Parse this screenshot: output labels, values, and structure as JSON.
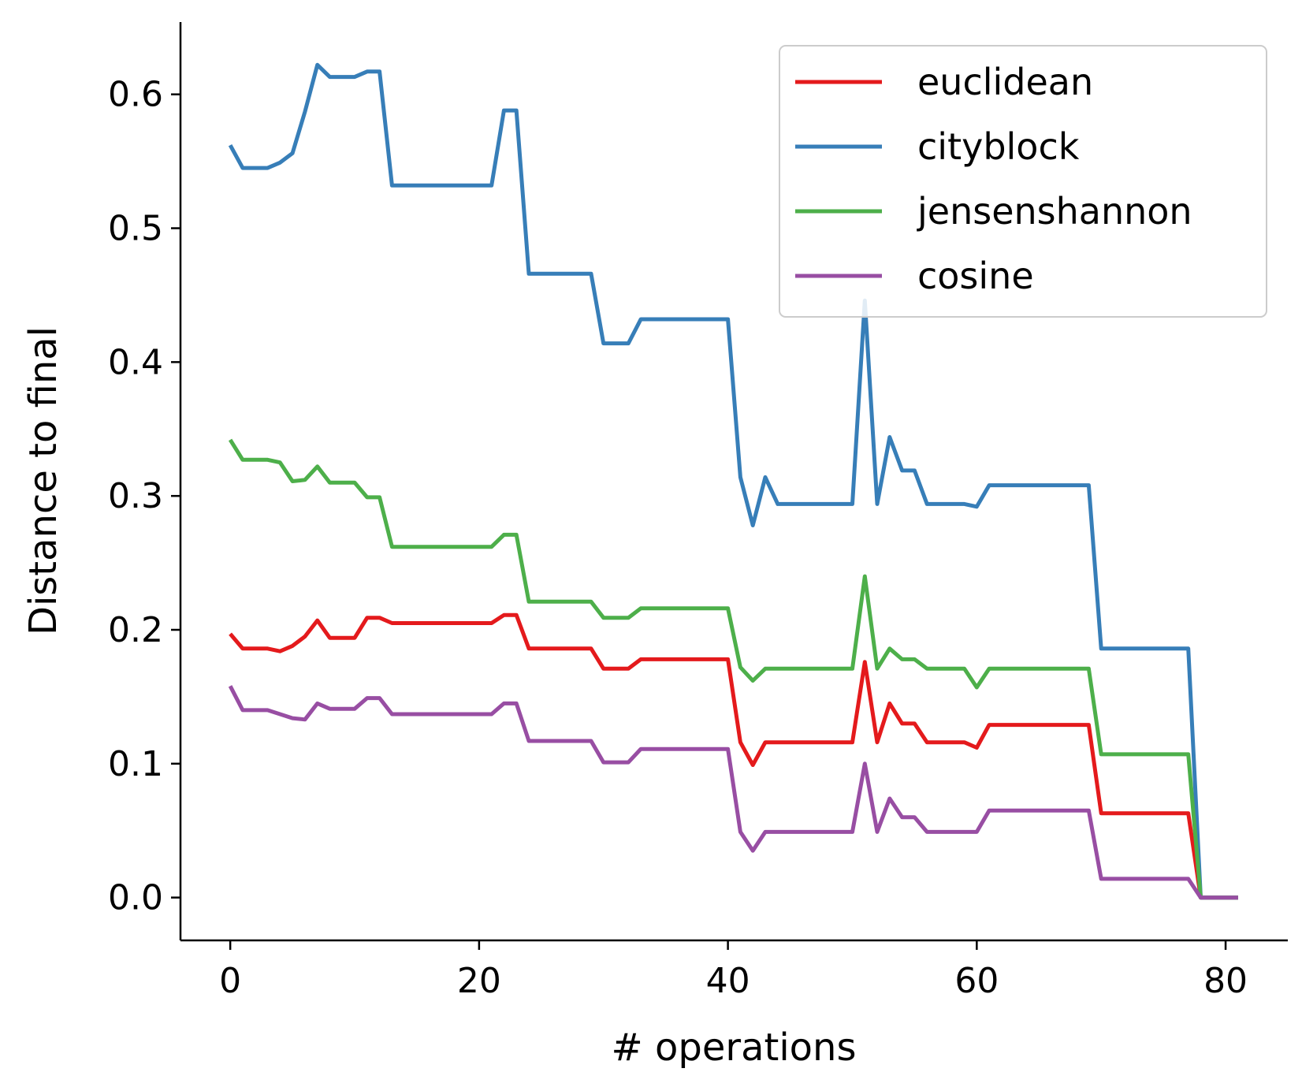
{
  "chart_data": {
    "type": "line",
    "title": "",
    "xlabel": "# operations",
    "ylabel": "Distance to final",
    "xlim": [
      -4,
      85
    ],
    "ylim": [
      -0.032,
      0.654
    ],
    "xticks": [
      0,
      20,
      40,
      60,
      80
    ],
    "yticks": [
      0.0,
      0.1,
      0.2,
      0.3,
      0.4,
      0.5,
      0.6
    ],
    "xtick_labels": [
      "0",
      "20",
      "40",
      "60",
      "80"
    ],
    "ytick_labels": [
      "0.0",
      "0.1",
      "0.2",
      "0.3",
      "0.4",
      "0.5",
      "0.6"
    ],
    "grid": false,
    "legend_position": "top-right",
    "x": [
      0,
      1,
      2,
      3,
      4,
      5,
      6,
      7,
      8,
      9,
      10,
      11,
      12,
      13,
      14,
      15,
      16,
      17,
      18,
      19,
      20,
      21,
      22,
      23,
      24,
      25,
      26,
      27,
      28,
      29,
      30,
      31,
      32,
      33,
      34,
      35,
      36,
      37,
      38,
      39,
      40,
      41,
      42,
      43,
      44,
      45,
      46,
      47,
      48,
      49,
      50,
      51,
      52,
      53,
      54,
      55,
      56,
      57,
      58,
      59,
      60,
      61,
      62,
      63,
      64,
      65,
      66,
      67,
      68,
      69,
      70,
      71,
      72,
      73,
      74,
      75,
      76,
      77,
      78,
      79,
      80,
      81
    ],
    "series": [
      {
        "name": "euclidean",
        "color": "#e41a1c",
        "values": [
          0.197,
          0.186,
          0.186,
          0.186,
          0.184,
          0.188,
          0.195,
          0.207,
          0.194,
          0.194,
          0.194,
          0.209,
          0.209,
          0.205,
          0.205,
          0.205,
          0.205,
          0.205,
          0.205,
          0.205,
          0.205,
          0.205,
          0.211,
          0.211,
          0.186,
          0.186,
          0.186,
          0.186,
          0.186,
          0.186,
          0.171,
          0.171,
          0.171,
          0.178,
          0.178,
          0.178,
          0.178,
          0.178,
          0.178,
          0.178,
          0.178,
          0.116,
          0.099,
          0.116,
          0.116,
          0.116,
          0.116,
          0.116,
          0.116,
          0.116,
          0.116,
          0.176,
          0.116,
          0.145,
          0.13,
          0.13,
          0.116,
          0.116,
          0.116,
          0.116,
          0.112,
          0.129,
          0.129,
          0.129,
          0.129,
          0.129,
          0.129,
          0.129,
          0.129,
          0.129,
          0.063,
          0.063,
          0.063,
          0.063,
          0.063,
          0.063,
          0.063,
          0.063,
          0.0,
          0.0,
          0.0,
          0.0
        ]
      },
      {
        "name": "cityblock",
        "color": "#377eb8",
        "values": [
          0.562,
          0.545,
          0.545,
          0.545,
          0.549,
          0.556,
          0.587,
          0.622,
          0.613,
          0.613,
          0.613,
          0.617,
          0.617,
          0.532,
          0.532,
          0.532,
          0.532,
          0.532,
          0.532,
          0.532,
          0.532,
          0.532,
          0.588,
          0.588,
          0.466,
          0.466,
          0.466,
          0.466,
          0.466,
          0.466,
          0.414,
          0.414,
          0.414,
          0.432,
          0.432,
          0.432,
          0.432,
          0.432,
          0.432,
          0.432,
          0.432,
          0.314,
          0.278,
          0.314,
          0.294,
          0.294,
          0.294,
          0.294,
          0.294,
          0.294,
          0.294,
          0.446,
          0.294,
          0.344,
          0.319,
          0.319,
          0.294,
          0.294,
          0.294,
          0.294,
          0.292,
          0.308,
          0.308,
          0.308,
          0.308,
          0.308,
          0.308,
          0.308,
          0.308,
          0.308,
          0.186,
          0.186,
          0.186,
          0.186,
          0.186,
          0.186,
          0.186,
          0.186,
          0.0,
          0.0,
          0.0,
          0.0
        ]
      },
      {
        "name": "jensenshannon",
        "color": "#4daf4a",
        "values": [
          0.342,
          0.327,
          0.327,
          0.327,
          0.325,
          0.311,
          0.312,
          0.322,
          0.31,
          0.31,
          0.31,
          0.299,
          0.299,
          0.262,
          0.262,
          0.262,
          0.262,
          0.262,
          0.262,
          0.262,
          0.262,
          0.262,
          0.271,
          0.271,
          0.221,
          0.221,
          0.221,
          0.221,
          0.221,
          0.221,
          0.209,
          0.209,
          0.209,
          0.216,
          0.216,
          0.216,
          0.216,
          0.216,
          0.216,
          0.216,
          0.216,
          0.172,
          0.162,
          0.171,
          0.171,
          0.171,
          0.171,
          0.171,
          0.171,
          0.171,
          0.171,
          0.24,
          0.171,
          0.186,
          0.178,
          0.178,
          0.171,
          0.171,
          0.171,
          0.171,
          0.157,
          0.171,
          0.171,
          0.171,
          0.171,
          0.171,
          0.171,
          0.171,
          0.171,
          0.171,
          0.107,
          0.107,
          0.107,
          0.107,
          0.107,
          0.107,
          0.107,
          0.107,
          0.0,
          0.0,
          0.0,
          0.0
        ]
      },
      {
        "name": "cosine",
        "color": "#984ea3",
        "values": [
          0.158,
          0.14,
          0.14,
          0.14,
          0.137,
          0.134,
          0.133,
          0.145,
          0.141,
          0.141,
          0.141,
          0.149,
          0.149,
          0.137,
          0.137,
          0.137,
          0.137,
          0.137,
          0.137,
          0.137,
          0.137,
          0.137,
          0.145,
          0.145,
          0.117,
          0.117,
          0.117,
          0.117,
          0.117,
          0.117,
          0.101,
          0.101,
          0.101,
          0.111,
          0.111,
          0.111,
          0.111,
          0.111,
          0.111,
          0.111,
          0.111,
          0.049,
          0.035,
          0.049,
          0.049,
          0.049,
          0.049,
          0.049,
          0.049,
          0.049,
          0.049,
          0.1,
          0.049,
          0.074,
          0.06,
          0.06,
          0.049,
          0.049,
          0.049,
          0.049,
          0.049,
          0.065,
          0.065,
          0.065,
          0.065,
          0.065,
          0.065,
          0.065,
          0.065,
          0.065,
          0.014,
          0.014,
          0.014,
          0.014,
          0.014,
          0.014,
          0.014,
          0.014,
          0.0,
          0.0,
          0.0,
          0.0
        ]
      }
    ]
  }
}
